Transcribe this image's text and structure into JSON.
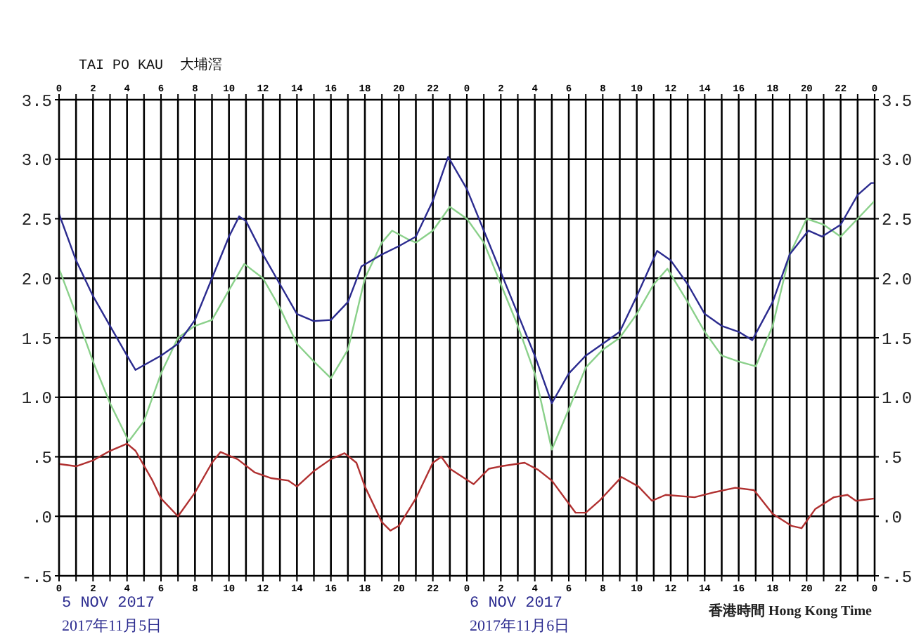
{
  "chart_data": {
    "type": "line",
    "title": "TAI PO KAU  大埔滘",
    "annotations": [
      "5 NOV 2017",
      "2017年11月5日",
      "6 NOV 2017",
      "2017年11月6日",
      "香港時間 Hong Kong Time"
    ],
    "xlim": [
      "2017-11-05T00:00",
      "2017-11-07T00:00"
    ],
    "xticks": [
      {
        "value": "2017-11-05T00:00",
        "label": "0"
      },
      {
        "value": "2017-11-05T01:00",
        "label": null
      },
      {
        "value": "2017-11-05T02:00",
        "label": "2"
      },
      {
        "value": "2017-11-05T03:00",
        "label": null
      },
      {
        "value": "2017-11-05T04:00",
        "label": "4"
      },
      {
        "value": "2017-11-05T05:00",
        "label": null
      },
      {
        "value": "2017-11-05T06:00",
        "label": "6"
      },
      {
        "value": "2017-11-05T07:00",
        "label": null
      },
      {
        "value": "2017-11-05T08:00",
        "label": "8"
      },
      {
        "value": "2017-11-05T09:00",
        "label": null
      },
      {
        "value": "2017-11-05T10:00",
        "label": "10"
      },
      {
        "value": "2017-11-05T11:00",
        "label": null
      },
      {
        "value": "2017-11-05T12:00",
        "label": "12"
      },
      {
        "value": "2017-11-05T13:00",
        "label": null
      },
      {
        "value": "2017-11-05T14:00",
        "label": "14"
      },
      {
        "value": "2017-11-05T15:00",
        "label": null
      },
      {
        "value": "2017-11-05T16:00",
        "label": "16"
      },
      {
        "value": "2017-11-05T17:00",
        "label": null
      },
      {
        "value": "2017-11-05T18:00",
        "label": "18"
      },
      {
        "value": "2017-11-05T19:00",
        "label": null
      },
      {
        "value": "2017-11-05T20:00",
        "label": "20"
      },
      {
        "value": "2017-11-05T21:00",
        "label": null
      },
      {
        "value": "2017-11-05T22:00",
        "label": "22"
      },
      {
        "value": "2017-11-05T23:00",
        "label": null
      },
      {
        "value": "2017-11-06T00:00",
        "label": "0"
      },
      {
        "value": "2017-11-06T01:00",
        "label": null
      },
      {
        "value": "2017-11-06T02:00",
        "label": "2"
      },
      {
        "value": "2017-11-06T03:00",
        "label": null
      },
      {
        "value": "2017-11-06T04:00",
        "label": "4"
      },
      {
        "value": "2017-11-06T05:00",
        "label": null
      },
      {
        "value": "2017-11-06T06:00",
        "label": "6"
      },
      {
        "value": "2017-11-06T07:00",
        "label": null
      },
      {
        "value": "2017-11-06T08:00",
        "label": "8"
      },
      {
        "value": "2017-11-06T09:00",
        "label": null
      },
      {
        "value": "2017-11-06T10:00",
        "label": "10"
      },
      {
        "value": "2017-11-06T11:00",
        "label": null
      },
      {
        "value": "2017-11-06T12:00",
        "label": "12"
      },
      {
        "value": "2017-11-06T13:00",
        "label": null
      },
      {
        "value": "2017-11-06T14:00",
        "label": "14"
      },
      {
        "value": "2017-11-06T15:00",
        "label": null
      },
      {
        "value": "2017-11-06T16:00",
        "label": "16"
      },
      {
        "value": "2017-11-06T17:00",
        "label": null
      },
      {
        "value": "2017-11-06T18:00",
        "label": "18"
      },
      {
        "value": "2017-11-06T19:00",
        "label": null
      },
      {
        "value": "2017-11-06T20:00",
        "label": "20"
      },
      {
        "value": "2017-11-06T21:00",
        "label": null
      },
      {
        "value": "2017-11-06T22:00",
        "label": "22"
      },
      {
        "value": "2017-11-06T23:00",
        "label": null
      },
      {
        "value": "2017-11-07T00:00",
        "label": "0"
      }
    ],
    "x2lim": [
      "2017-11-05T00:00",
      "2017-11-07T00:00"
    ],
    "x2ticks": [
      {
        "value": "2017-11-05T00:00",
        "label": "0"
      },
      {
        "value": "2017-11-05T01:00",
        "label": null
      },
      {
        "value": "2017-11-05T02:00",
        "label": "2"
      },
      {
        "value": "2017-11-05T03:00",
        "label": null
      },
      {
        "value": "2017-11-05T04:00",
        "label": "4"
      },
      {
        "value": "2017-11-05T05:00",
        "label": null
      },
      {
        "value": "2017-11-05T06:00",
        "label": "6"
      },
      {
        "value": "2017-11-05T07:00",
        "label": null
      },
      {
        "value": "2017-11-05T08:00",
        "label": "8"
      },
      {
        "value": "2017-11-05T09:00",
        "label": null
      },
      {
        "value": "2017-11-05T10:00",
        "label": "10"
      },
      {
        "value": "2017-11-05T11:00",
        "label": null
      },
      {
        "value": "2017-11-05T12:00",
        "label": "12"
      },
      {
        "value": "2017-11-05T13:00",
        "label": null
      },
      {
        "value": "2017-11-05T14:00",
        "label": "14"
      },
      {
        "value": "2017-11-05T15:00",
        "label": null
      },
      {
        "value": "2017-11-05T16:00",
        "label": "16"
      },
      {
        "value": "2017-11-05T17:00",
        "label": null
      },
      {
        "value": "2017-11-05T18:00",
        "label": "18"
      },
      {
        "value": "2017-11-05T19:00",
        "label": null
      },
      {
        "value": "2017-11-05T20:00",
        "label": "20"
      },
      {
        "value": "2017-11-05T21:00",
        "label": null
      },
      {
        "value": "2017-11-05T22:00",
        "label": "22"
      },
      {
        "value": "2017-11-05T23:00",
        "label": null
      },
      {
        "value": "2017-11-06T00:00",
        "label": "0"
      },
      {
        "value": "2017-11-06T01:00",
        "label": null
      },
      {
        "value": "2017-11-06T02:00",
        "label": "2"
      },
      {
        "value": "2017-11-06T03:00",
        "label": null
      },
      {
        "value": "2017-11-06T04:00",
        "label": "4"
      },
      {
        "value": "2017-11-06T05:00",
        "label": null
      },
      {
        "value": "2017-11-06T06:00",
        "label": "6"
      },
      {
        "value": "2017-11-06T07:00",
        "label": null
      },
      {
        "value": "2017-11-06T08:00",
        "label": "8"
      },
      {
        "value": "2017-11-06T09:00",
        "label": null
      },
      {
        "value": "2017-11-06T10:00",
        "label": "10"
      },
      {
        "value": "2017-11-06T11:00",
        "label": null
      },
      {
        "value": "2017-11-06T12:00",
        "label": "12"
      },
      {
        "value": "2017-11-06T13:00",
        "label": null
      },
      {
        "value": "2017-11-06T14:00",
        "label": "14"
      },
      {
        "value": "2017-11-06T15:00",
        "label": null
      },
      {
        "value": "2017-11-06T16:00",
        "label": "16"
      },
      {
        "value": "2017-11-06T17:00",
        "label": null
      },
      {
        "value": "2017-11-06T18:00",
        "label": "18"
      },
      {
        "value": "2017-11-06T19:00",
        "label": null
      },
      {
        "value": "2017-11-06T20:00",
        "label": "20"
      },
      {
        "value": "2017-11-06T21:00",
        "label": null
      },
      {
        "value": "2017-11-06T22:00",
        "label": "22"
      },
      {
        "value": "2017-11-06T23:00",
        "label": null
      },
      {
        "value": "2017-11-07T00:00",
        "label": "0"
      }
    ],
    "ylim": [
      -0.5,
      3.5
    ],
    "yticks": [
      {
        "value": -0.5,
        "label": "-.5"
      },
      {
        "value": 0,
        "label": ".0"
      },
      {
        "value": 0.5,
        "label": ".5"
      },
      {
        "value": 1,
        "label": "1.0"
      },
      {
        "value": 1.5,
        "label": "1.5"
      },
      {
        "value": 2,
        "label": "2.0"
      },
      {
        "value": 2.5,
        "label": "2.5"
      },
      {
        "value": 3,
        "label": "3.0"
      },
      {
        "value": 3.5,
        "label": "3.5"
      }
    ],
    "y2lim": [
      -0.5,
      3.5
    ],
    "y2ticks": [
      {
        "value": -0.5,
        "label": "-.5"
      },
      {
        "value": 0,
        "label": ".0"
      },
      {
        "value": 0.5,
        "label": ".5"
      },
      {
        "value": 1,
        "label": "1.0"
      },
      {
        "value": 1.5,
        "label": "1.5"
      },
      {
        "value": 2,
        "label": "2.0"
      },
      {
        "value": 2.5,
        "label": "2.5"
      },
      {
        "value": 3,
        "label": "3.0"
      },
      {
        "value": 3.5,
        "label": "3.5"
      }
    ],
    "grid": true,
    "line_style": "solid",
    "series": [
      {
        "color": "#8ad08a",
        "x": [
          "2017-11-05T00:00",
          "2017-11-05T01:00",
          "2017-11-05T02:00",
          "2017-11-05T03:00",
          "2017-11-05T04:06",
          "2017-11-05T05:00",
          "2017-11-05T06:00",
          "2017-11-05T07:00",
          "2017-11-05T08:00",
          "2017-11-05T09:00",
          "2017-11-05T10:00",
          "2017-11-05T10:54",
          "2017-11-05T12:00",
          "2017-11-05T13:00",
          "2017-11-05T14:00",
          "2017-11-05T15:00",
          "2017-11-05T16:00",
          "2017-11-05T17:00",
          "2017-11-05T18:00",
          "2017-11-05T19:00",
          "2017-11-05T19:36",
          "2017-11-05T20:30",
          "2017-11-05T21:00",
          "2017-11-05T22:00",
          "2017-11-05T23:00",
          "2017-11-06T00:00",
          "2017-11-06T01:00",
          "2017-11-06T02:00",
          "2017-11-06T03:00",
          "2017-11-06T04:00",
          "2017-11-06T05:00",
          "2017-11-06T06:00",
          "2017-11-06T07:00",
          "2017-11-06T08:00",
          "2017-11-06T09:00",
          "2017-11-06T10:00",
          "2017-11-06T11:00",
          "2017-11-06T11:48",
          "2017-11-06T13:00",
          "2017-11-06T14:00",
          "2017-11-06T15:00",
          "2017-11-06T16:00",
          "2017-11-06T17:00",
          "2017-11-06T18:00",
          "2017-11-06T19:00",
          "2017-11-06T20:00",
          "2017-11-06T21:00",
          "2017-11-06T22:00",
          "2017-11-06T23:00",
          "2017-11-07T00:00"
        ],
        "values": [
          2.08,
          1.7,
          1.3,
          0.95,
          0.63,
          0.8,
          1.2,
          1.5,
          1.6,
          1.65,
          1.9,
          2.12,
          2.0,
          1.75,
          1.45,
          1.3,
          1.16,
          1.4,
          2.0,
          2.3,
          2.4,
          2.33,
          2.3,
          2.4,
          2.6,
          2.5,
          2.3,
          1.95,
          1.6,
          1.2,
          0.56,
          0.9,
          1.25,
          1.4,
          1.5,
          1.7,
          1.95,
          2.08,
          1.8,
          1.55,
          1.35,
          1.3,
          1.26,
          1.6,
          2.2,
          2.5,
          2.45,
          2.35,
          2.5,
          2.65
        ]
      },
      {
        "color": "#2b2b8f",
        "x": [
          "2017-11-05T00:00",
          "2017-11-05T01:00",
          "2017-11-05T02:00",
          "2017-11-05T03:00",
          "2017-11-05T04:00",
          "2017-11-05T04:30",
          "2017-11-05T05:00",
          "2017-11-05T06:00",
          "2017-11-05T07:00",
          "2017-11-05T08:00",
          "2017-11-05T09:00",
          "2017-11-05T10:00",
          "2017-11-05T10:36",
          "2017-11-05T11:00",
          "2017-11-05T12:00",
          "2017-11-05T13:00",
          "2017-11-05T14:00",
          "2017-11-05T15:00",
          "2017-11-05T16:00",
          "2017-11-05T17:00",
          "2017-11-05T17:48",
          "2017-11-05T19:00",
          "2017-11-05T20:00",
          "2017-11-05T21:00",
          "2017-11-05T22:00",
          "2017-11-05T22:54",
          "2017-11-06T00:00",
          "2017-11-06T01:00",
          "2017-11-06T02:00",
          "2017-11-06T03:00",
          "2017-11-06T04:00",
          "2017-11-06T05:00",
          "2017-11-06T06:00",
          "2017-11-06T07:00",
          "2017-11-06T08:00",
          "2017-11-06T09:00",
          "2017-11-06T10:00",
          "2017-11-06T11:12",
          "2017-11-06T12:00",
          "2017-11-06T13:00",
          "2017-11-06T14:00",
          "2017-11-06T15:00",
          "2017-11-06T16:00",
          "2017-11-06T16:48",
          "2017-11-06T18:00",
          "2017-11-06T19:00",
          "2017-11-06T20:06",
          "2017-11-06T20:54",
          "2017-11-06T22:00",
          "2017-11-06T23:00",
          "2017-11-06T23:48",
          "2017-11-07T00:00"
        ],
        "values": [
          2.54,
          2.15,
          1.85,
          1.6,
          1.35,
          1.23,
          1.27,
          1.35,
          1.45,
          1.65,
          2.0,
          2.35,
          2.52,
          2.48,
          2.2,
          1.95,
          1.7,
          1.64,
          1.65,
          1.8,
          2.1,
          2.2,
          2.27,
          2.35,
          2.65,
          3.02,
          2.75,
          2.4,
          2.05,
          1.7,
          1.35,
          0.95,
          1.2,
          1.35,
          1.45,
          1.55,
          1.85,
          2.23,
          2.15,
          1.95,
          1.7,
          1.6,
          1.55,
          1.48,
          1.8,
          2.2,
          2.4,
          2.35,
          2.45,
          2.7,
          2.8,
          2.8
        ]
      },
      {
        "color": "#b03030",
        "x": [
          "2017-11-05T00:00",
          "2017-11-05T01:00",
          "2017-11-05T02:00",
          "2017-11-05T03:00",
          "2017-11-05T04:00",
          "2017-11-05T04:30",
          "2017-11-05T05:30",
          "2017-11-05T06:00",
          "2017-11-05T07:00",
          "2017-11-05T08:00",
          "2017-11-05T09:00",
          "2017-11-05T09:30",
          "2017-11-05T10:30",
          "2017-11-05T11:30",
          "2017-11-05T12:30",
          "2017-11-05T13:30",
          "2017-11-05T14:00",
          "2017-11-05T15:00",
          "2017-11-05T16:00",
          "2017-11-05T16:48",
          "2017-11-05T17:30",
          "2017-11-05T18:00",
          "2017-11-05T19:00",
          "2017-11-05T19:30",
          "2017-11-05T20:00",
          "2017-11-05T21:00",
          "2017-11-05T22:00",
          "2017-11-05T22:30",
          "2017-11-05T23:00",
          "2017-11-06T00:24",
          "2017-11-06T01:18",
          "2017-11-06T02:00",
          "2017-11-06T03:24",
          "2017-11-06T04:12",
          "2017-11-06T05:00",
          "2017-11-06T06:24",
          "2017-11-06T07:00",
          "2017-11-06T07:48",
          "2017-11-06T09:06",
          "2017-11-06T10:06",
          "2017-11-06T10:54",
          "2017-11-06T11:42",
          "2017-11-06T13:24",
          "2017-11-06T14:30",
          "2017-11-06T15:48",
          "2017-11-06T16:54",
          "2017-11-06T18:00",
          "2017-11-06T19:06",
          "2017-11-06T19:42",
          "2017-11-06T20:30",
          "2017-11-06T21:36",
          "2017-11-06T22:24",
          "2017-11-06T22:54",
          "2017-11-07T00:00"
        ],
        "values": [
          0.44,
          0.42,
          0.47,
          0.55,
          0.61,
          0.55,
          0.3,
          0.15,
          0.0,
          0.2,
          0.45,
          0.54,
          0.48,
          0.37,
          0.32,
          0.3,
          0.25,
          0.38,
          0.48,
          0.53,
          0.45,
          0.25,
          -0.05,
          -0.12,
          -0.08,
          0.15,
          0.45,
          0.5,
          0.4,
          0.27,
          0.4,
          0.42,
          0.45,
          0.39,
          0.3,
          0.03,
          0.03,
          0.13,
          0.33,
          0.25,
          0.13,
          0.18,
          0.16,
          0.2,
          0.24,
          0.22,
          0.02,
          -0.08,
          -0.1,
          0.06,
          0.16,
          0.18,
          0.13,
          0.15
        ]
      }
    ]
  }
}
